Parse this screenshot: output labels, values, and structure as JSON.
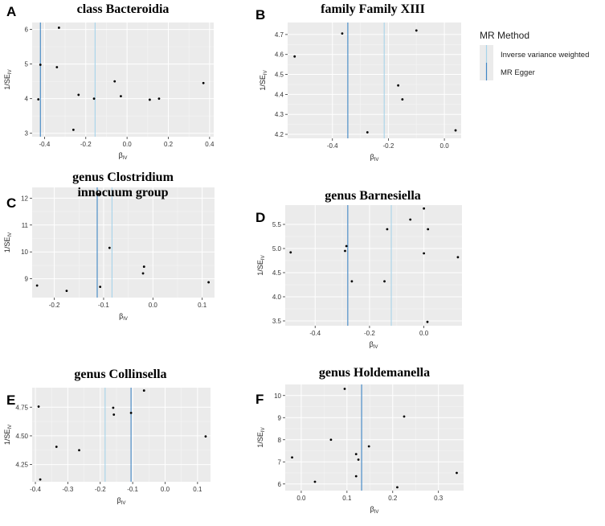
{
  "legend": {
    "title": "MR Method",
    "entries": [
      {
        "label": "Inverse variance weighted",
        "color": "#a6d3ea"
      },
      {
        "label": "MR Egger",
        "color": "#3f86c4"
      }
    ]
  },
  "axis_text": {
    "x_main": "β",
    "x_sub": "IV",
    "y_main": "1/SE",
    "y_sub": "IV"
  },
  "chart_data": [
    {
      "type": "scatter",
      "letter": "A",
      "title": [
        "class  Bacteroidia"
      ],
      "xlim": [
        -0.46,
        0.42
      ],
      "ylim": [
        2.9,
        6.2
      ],
      "xticks": [
        -0.4,
        -0.2,
        0.0,
        0.2,
        0.4
      ],
      "xtick_labels": [
        "-0.4",
        "-0.2",
        "0.0",
        "0.2",
        "0.4"
      ],
      "yticks": [
        3,
        4,
        5,
        6
      ],
      "ytick_labels": [
        "3",
        "4",
        "5",
        "6"
      ],
      "ivw": -0.155,
      "egger": -0.42,
      "points": [
        [
          -0.42,
          4.98
        ],
        [
          -0.43,
          3.98
        ],
        [
          -0.33,
          6.05
        ],
        [
          -0.34,
          4.91
        ],
        [
          -0.235,
          4.11
        ],
        [
          -0.26,
          3.1
        ],
        [
          -0.16,
          4.0
        ],
        [
          -0.06,
          4.5
        ],
        [
          -0.03,
          4.07
        ],
        [
          0.11,
          3.97
        ],
        [
          0.155,
          4.0
        ],
        [
          0.37,
          4.45
        ]
      ]
    },
    {
      "type": "scatter",
      "letter": "B",
      "title": [
        "family  Family XIII"
      ],
      "xlim": [
        -0.56,
        0.06
      ],
      "ylim": [
        4.18,
        4.76
      ],
      "xticks": [
        -0.4,
        -0.2,
        0.0
      ],
      "xtick_labels": [
        "-0.4",
        "-0.2",
        "0.0"
      ],
      "yticks": [
        4.2,
        4.3,
        4.4,
        4.5,
        4.6,
        4.7
      ],
      "ytick_labels": [
        "4.2",
        "4.3",
        "4.4",
        "4.5",
        "4.6",
        "4.7"
      ],
      "ivw": -0.215,
      "egger": -0.345,
      "points": [
        [
          -0.535,
          4.59
        ],
        [
          -0.365,
          4.705
        ],
        [
          -0.275,
          4.21
        ],
        [
          -0.165,
          4.445
        ],
        [
          -0.15,
          4.375
        ],
        [
          -0.1,
          4.72
        ],
        [
          0.04,
          4.22
        ]
      ]
    },
    {
      "type": "scatter",
      "letter": "C",
      "title": [
        "genus  Clostridium",
        "innocuum group"
      ],
      "xlim": [
        -0.245,
        0.125
      ],
      "ylim": [
        8.3,
        12.4
      ],
      "xticks": [
        -0.2,
        -0.1,
        0.0,
        0.1
      ],
      "xtick_labels": [
        "-0.2",
        "-0.1",
        "0.0",
        "0.1"
      ],
      "yticks": [
        9,
        10,
        11,
        12
      ],
      "ytick_labels": [
        "9",
        "10",
        "11",
        "12"
      ],
      "ivw": -0.083,
      "egger": -0.113,
      "points": [
        [
          -0.235,
          8.75
        ],
        [
          -0.175,
          8.55
        ],
        [
          -0.11,
          12.15
        ],
        [
          -0.107,
          8.7
        ],
        [
          -0.088,
          10.15
        ],
        [
          -0.018,
          9.45
        ],
        [
          -0.02,
          9.2
        ],
        [
          0.113,
          8.87
        ]
      ]
    },
    {
      "type": "scatter",
      "letter": "D",
      "title": [
        "genus  Barnesiella"
      ],
      "xlim": [
        -0.51,
        0.14
      ],
      "ylim": [
        3.4,
        5.9
      ],
      "xticks": [
        -0.4,
        -0.2,
        0.0
      ],
      "xtick_labels": [
        "-0.4",
        "-0.2",
        "0.0"
      ],
      "yticks": [
        3.5,
        4.0,
        4.5,
        5.0,
        5.5
      ],
      "ytick_labels": [
        "3.5",
        "4.0",
        "4.5",
        "5.0",
        "5.5"
      ],
      "ivw": -0.12,
      "egger": -0.28,
      "points": [
        [
          -0.49,
          4.92
        ],
        [
          -0.29,
          4.95
        ],
        [
          -0.285,
          5.05
        ],
        [
          -0.265,
          4.32
        ],
        [
          -0.135,
          5.4
        ],
        [
          -0.145,
          4.32
        ],
        [
          -0.05,
          5.6
        ],
        [
          0.0,
          5.83
        ],
        [
          0.0,
          4.9
        ],
        [
          0.015,
          5.4
        ],
        [
          0.013,
          3.48
        ],
        [
          0.125,
          4.82
        ]
      ]
    },
    {
      "type": "scatter",
      "letter": "E",
      "title": [
        "genus  Collinsella"
      ],
      "xlim": [
        -0.41,
        0.14
      ],
      "ylim": [
        4.1,
        4.92
      ],
      "xticks": [
        -0.4,
        -0.3,
        -0.2,
        -0.1,
        0.0,
        0.1
      ],
      "xtick_labels": [
        "-0.4",
        "-0.3",
        "-0.2",
        "-0.1",
        "0.0",
        "0.1"
      ],
      "yticks": [
        4.25,
        4.5,
        4.75
      ],
      "ytick_labels": [
        "4.25",
        "4.50",
        "4.75"
      ],
      "ivw": -0.185,
      "egger": -0.105,
      "points": [
        [
          -0.39,
          4.755
        ],
        [
          -0.385,
          4.12
        ],
        [
          -0.335,
          4.405
        ],
        [
          -0.265,
          4.375
        ],
        [
          -0.16,
          4.745
        ],
        [
          -0.158,
          4.685
        ],
        [
          -0.105,
          4.7
        ],
        [
          -0.065,
          4.895
        ],
        [
          0.125,
          4.495
        ]
      ]
    },
    {
      "type": "scatter",
      "letter": "F",
      "title": [
        "genus  Holdemanella"
      ],
      "xlim": [
        -0.035,
        0.355
      ],
      "ylim": [
        5.7,
        10.5
      ],
      "xticks": [
        0.0,
        0.1,
        0.2,
        0.3
      ],
      "xtick_labels": [
        "0.0",
        "0.1",
        "0.2",
        "0.3"
      ],
      "yticks": [
        6,
        7,
        8,
        9,
        10
      ],
      "ytick_labels": [
        "6",
        "7",
        "8",
        "9",
        "10"
      ],
      "ivw": 0.132,
      "egger": 0.132,
      "points": [
        [
          -0.02,
          7.2
        ],
        [
          0.03,
          6.1
        ],
        [
          0.065,
          8.0
        ],
        [
          0.095,
          10.3
        ],
        [
          0.12,
          7.35
        ],
        [
          0.125,
          7.1
        ],
        [
          0.12,
          6.35
        ],
        [
          0.148,
          7.7
        ],
        [
          0.21,
          5.85
        ],
        [
          0.225,
          9.05
        ],
        [
          0.34,
          6.5
        ]
      ]
    }
  ]
}
